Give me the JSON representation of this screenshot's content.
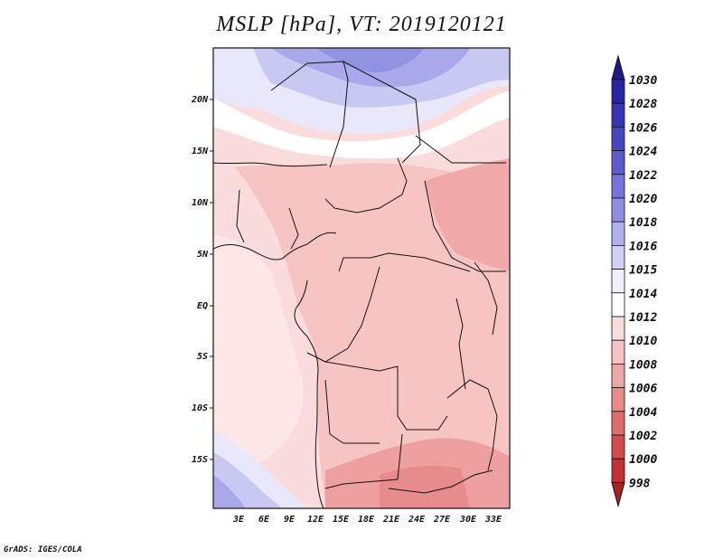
{
  "title": "MSLP [hPa], VT: 2019120121",
  "footer": "GrADS: IGES/COLA",
  "map": {
    "region": "Central & Southern-Central Africa",
    "lat_labels": [
      "20N",
      "15N",
      "10N",
      "5N",
      "EQ",
      "5S",
      "10S",
      "15S"
    ],
    "lon_labels": [
      "3E",
      "6E",
      "9E",
      "12E",
      "15E",
      "18E",
      "21E",
      "24E",
      "27E",
      "30E",
      "33E"
    ],
    "lat_range": [
      -20,
      25
    ],
    "lon_range": [
      0,
      35
    ]
  },
  "colorbar": {
    "levels": [
      "1030",
      "1028",
      "1026",
      "1024",
      "1022",
      "1020",
      "1018",
      "1016",
      "1015",
      "1014",
      "1012",
      "1010",
      "1008",
      "1006",
      "1004",
      "1002",
      "1000",
      "998"
    ],
    "colors": [
      "#1a1a8c",
      "#2626a6",
      "#3434b5",
      "#4646c2",
      "#5c5cd0",
      "#7474dc",
      "#8e8ee6",
      "#b0b0ee",
      "#d2d2f6",
      "#f0f0fc",
      "#ffffff",
      "#fbdcdc",
      "#f7c2c2",
      "#f1a6a6",
      "#ea8a8a",
      "#e06c6c",
      "#d44a4a",
      "#c43030",
      "#a82020"
    ]
  }
}
